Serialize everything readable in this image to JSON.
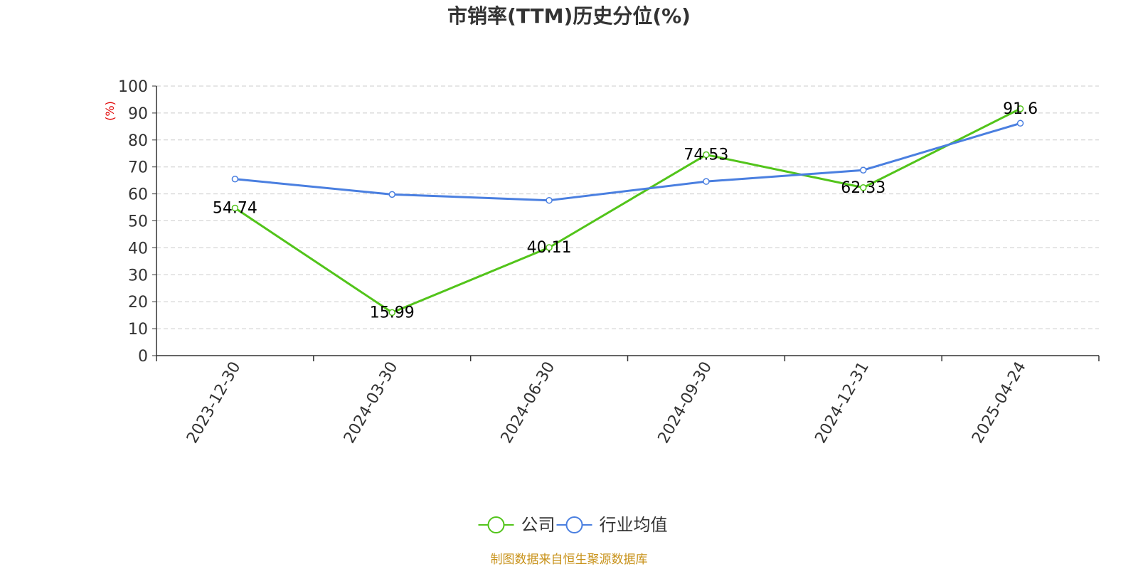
{
  "chart_data": {
    "type": "line",
    "title": "市销率(TTM)历史分位(%)",
    "ylabel": "(%)",
    "xlabel": "",
    "ylim": [
      0,
      100
    ],
    "yticks": [
      0,
      10,
      20,
      30,
      40,
      50,
      60,
      70,
      80,
      90,
      100
    ],
    "categories": [
      "2023-12-30",
      "2024-03-30",
      "2024-06-30",
      "2024-09-30",
      "2024-12-31",
      "2025-04-24"
    ],
    "grid": true,
    "legend_position": "bottom-center",
    "series": [
      {
        "name": "公司",
        "color": "#52c41a",
        "values": [
          54.74,
          15.99,
          40.11,
          74.53,
          62.33,
          91.6
        ],
        "labels": [
          "54.74",
          "15.99",
          "40.11",
          "74.53",
          "62.33",
          "91.6"
        ]
      },
      {
        "name": "行业均值",
        "color": "#4a7fe0",
        "values": [
          65.5,
          59.8,
          57.6,
          64.6,
          68.8,
          86.2
        ]
      }
    ]
  },
  "source": "制图数据来自恒生聚源数据库"
}
